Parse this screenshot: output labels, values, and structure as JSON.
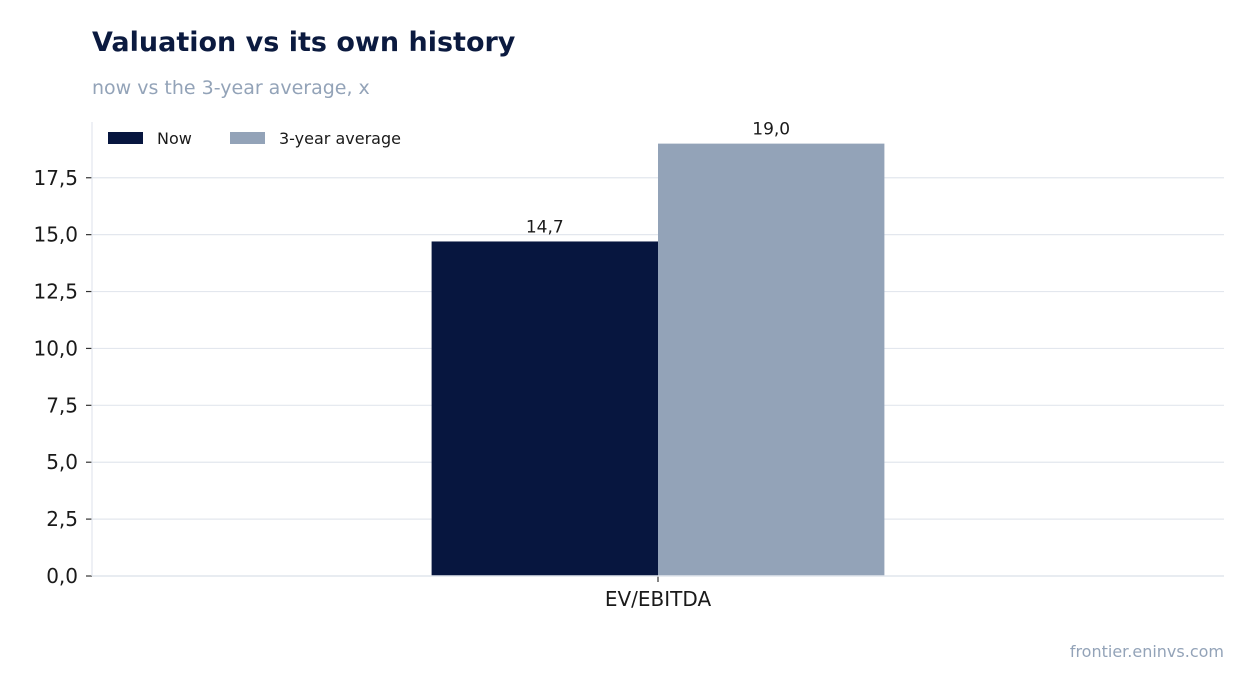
{
  "chart_data": {
    "type": "bar",
    "title": "Valuation vs its own history",
    "subtitle": "now vs the 3-year average, x",
    "categories": [
      "EV/EBITDA"
    ],
    "series": [
      {
        "name": "Now",
        "values": [
          14.7
        ],
        "color": "#07163f"
      },
      {
        "name": "3-year average",
        "values": [
          19.0
        ],
        "color": "#93a3b8"
      }
    ],
    "data_labels": [
      [
        "14,7"
      ],
      [
        "19,0"
      ]
    ],
    "yticks": [
      "0,0",
      "2,5",
      "5,0",
      "7,5",
      "10,0",
      "12,5",
      "15,0",
      "17,5"
    ],
    "ytick_values": [
      0,
      2.5,
      5,
      7.5,
      10,
      12.5,
      15,
      17.5
    ],
    "ylim": [
      0,
      19.95
    ],
    "grid": true,
    "legend": "top-left"
  },
  "footer": "frontier.eninvs.com"
}
